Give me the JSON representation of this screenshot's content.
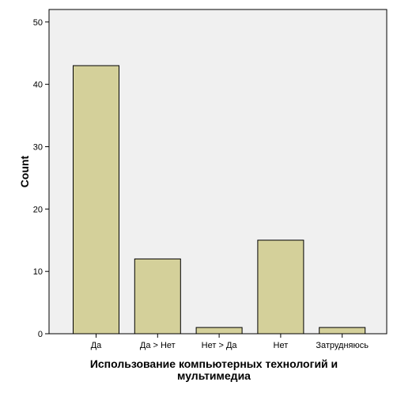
{
  "chart_data": {
    "type": "bar",
    "categories": [
      "Да",
      "Да > Нет",
      "Нет > Да",
      "Нет",
      "Затрудняюсь"
    ],
    "values": [
      43,
      12,
      1,
      15,
      1
    ],
    "title": "",
    "xlabel_lines": [
      "Использование компьютерных технологий и",
      "мультимедиа"
    ],
    "ylabel": "Count",
    "ylim": [
      0,
      52
    ],
    "yticks": [
      0,
      10,
      20,
      30,
      40,
      50
    ],
    "grid": false,
    "legend": "none",
    "colors": {
      "plot_background": "#f0f0f0",
      "bar_fill": "#d4d09a",
      "bar_stroke": "#000000",
      "axis": "#000000"
    }
  }
}
